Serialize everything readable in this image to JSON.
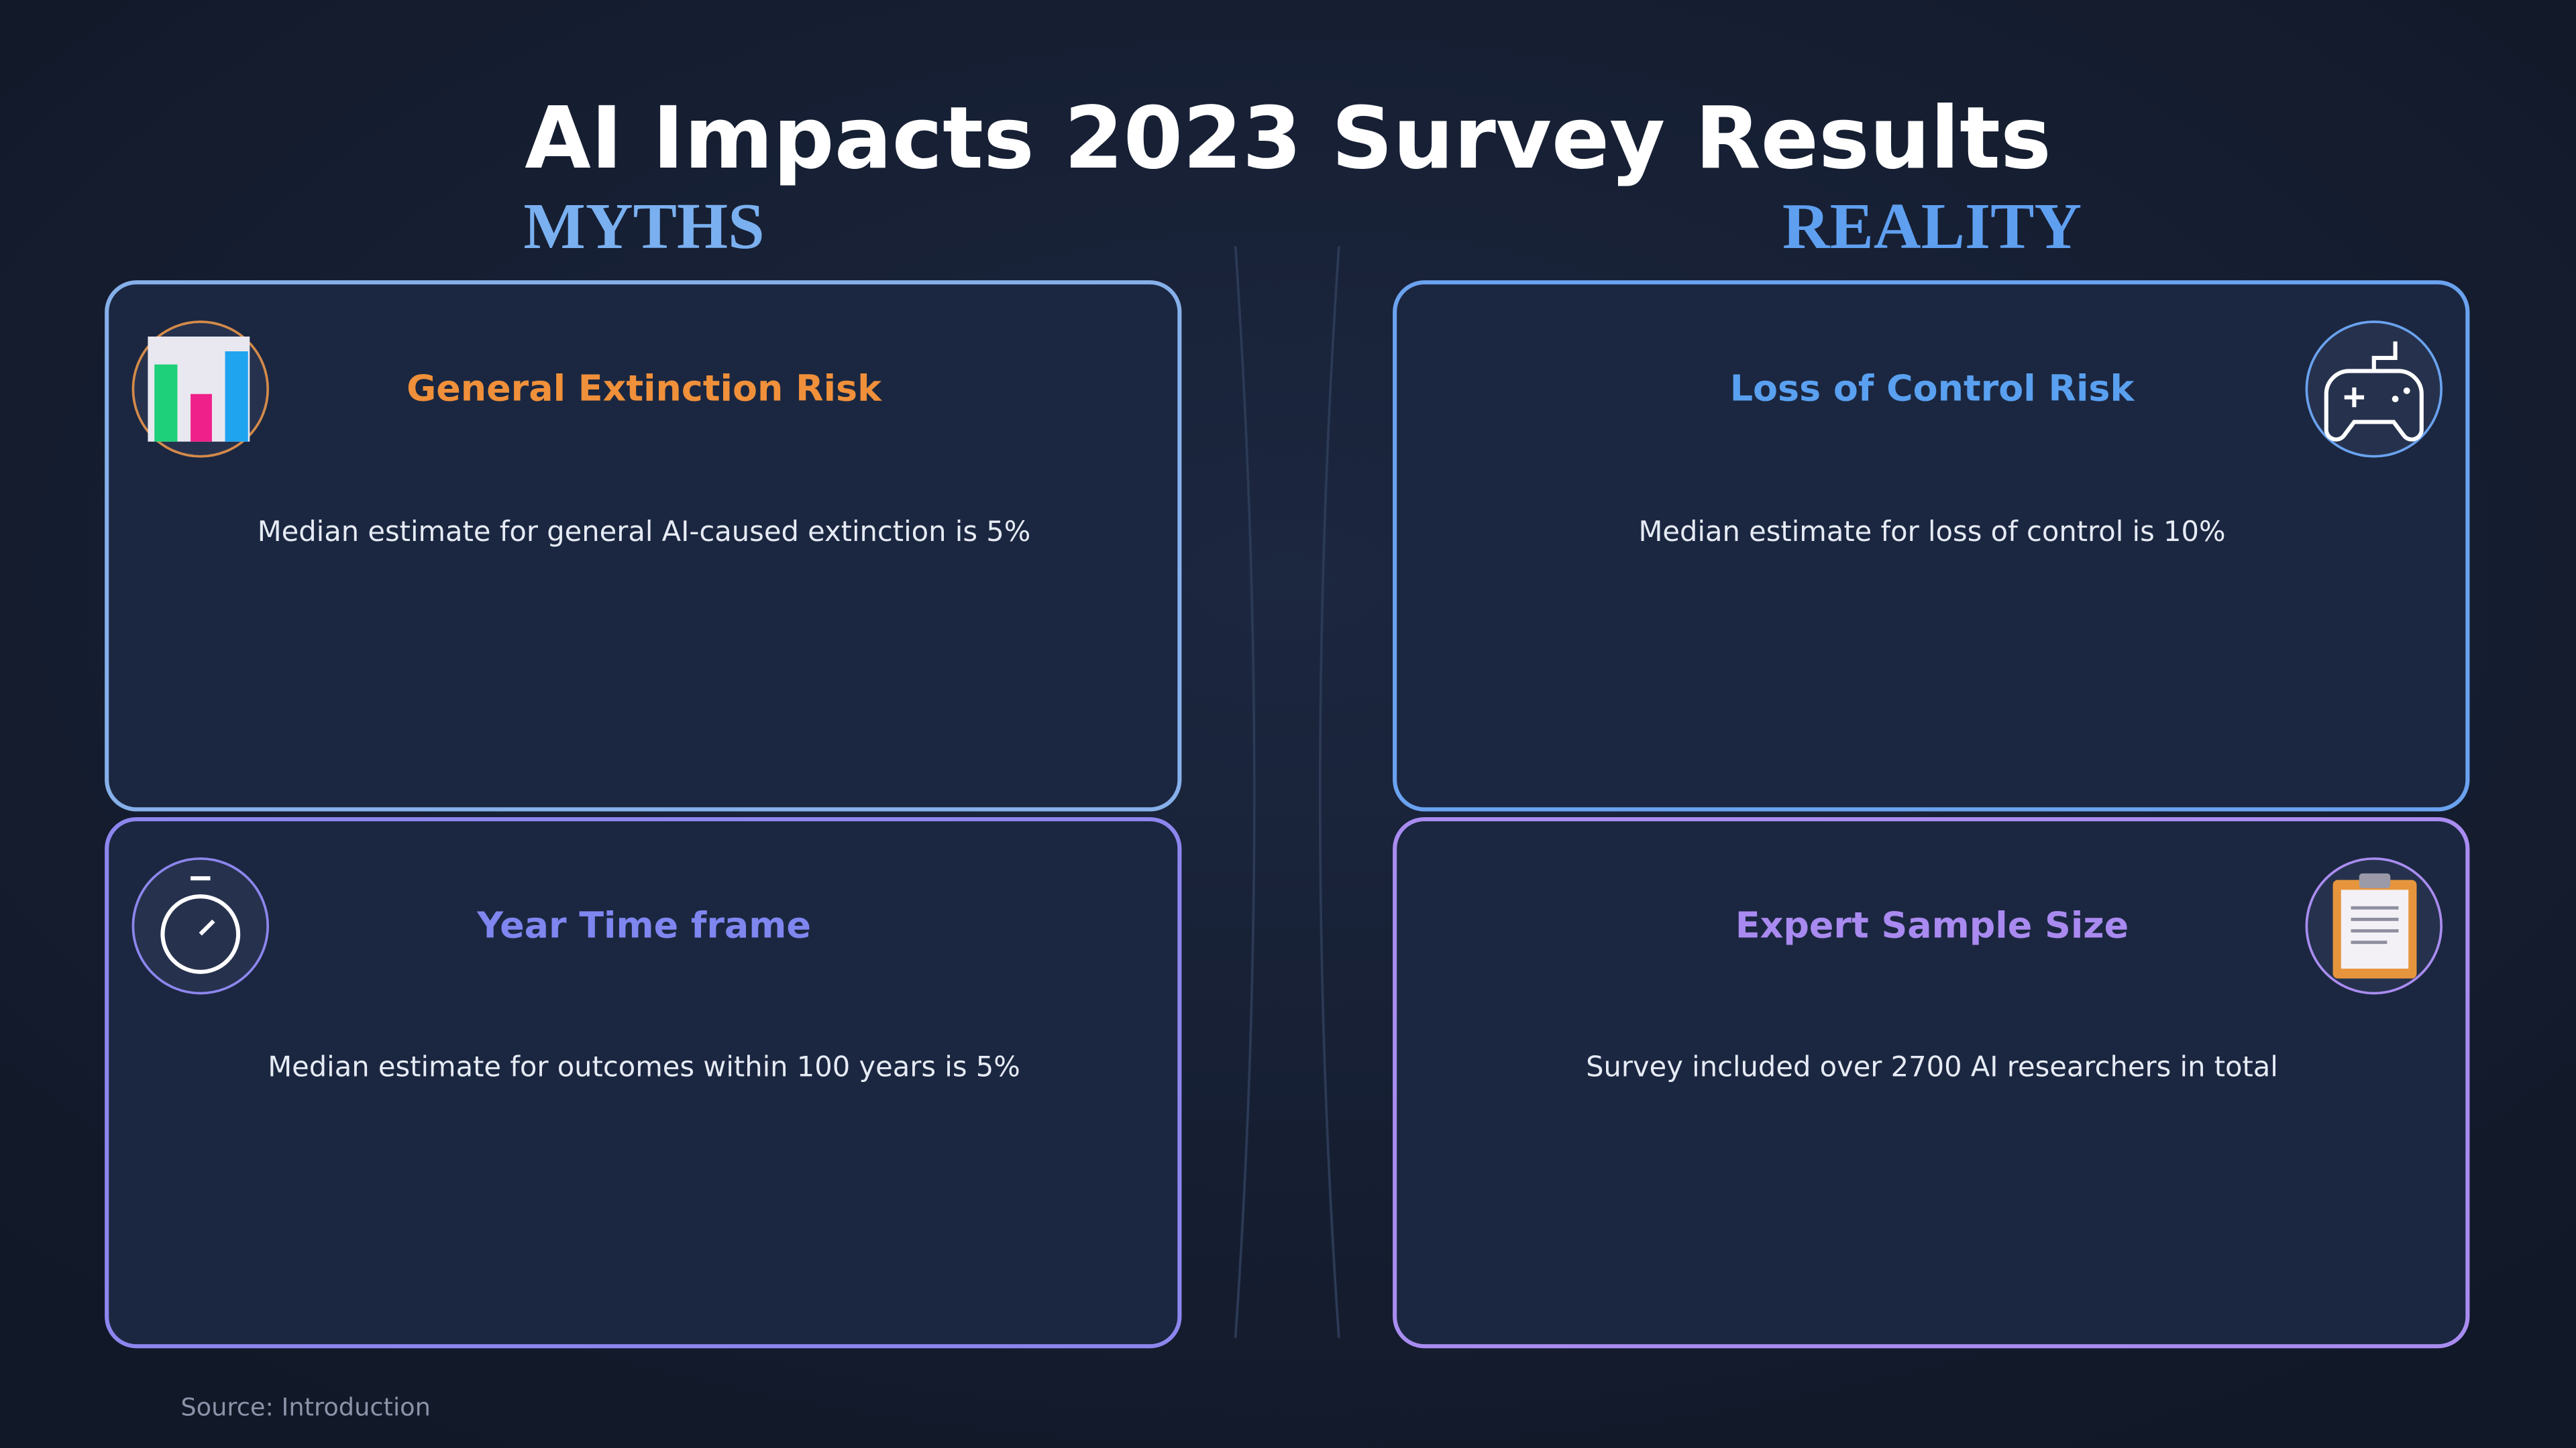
{
  "header": {
    "title": "AI Impacts 2023 Survey Results"
  },
  "columns": [
    {
      "heading": "MYTHS"
    },
    {
      "heading": "REALITY"
    }
  ],
  "cards": [
    {
      "title": "General Extinction Risk",
      "text": "Median estimate for general AI-caused extinction is 5%"
    },
    {
      "title": "Loss of Control Risk",
      "text": "Median estimate for loss of control is 10%"
    },
    {
      "title": "Year Time frame",
      "text": "Median estimate for outcomes within 100 years is 5%"
    },
    {
      "title": "Expert Sample Size",
      "text": "Survey included over 2700 AI researchers in total"
    }
  ],
  "footer": {
    "source": "Source: Introduction"
  }
}
